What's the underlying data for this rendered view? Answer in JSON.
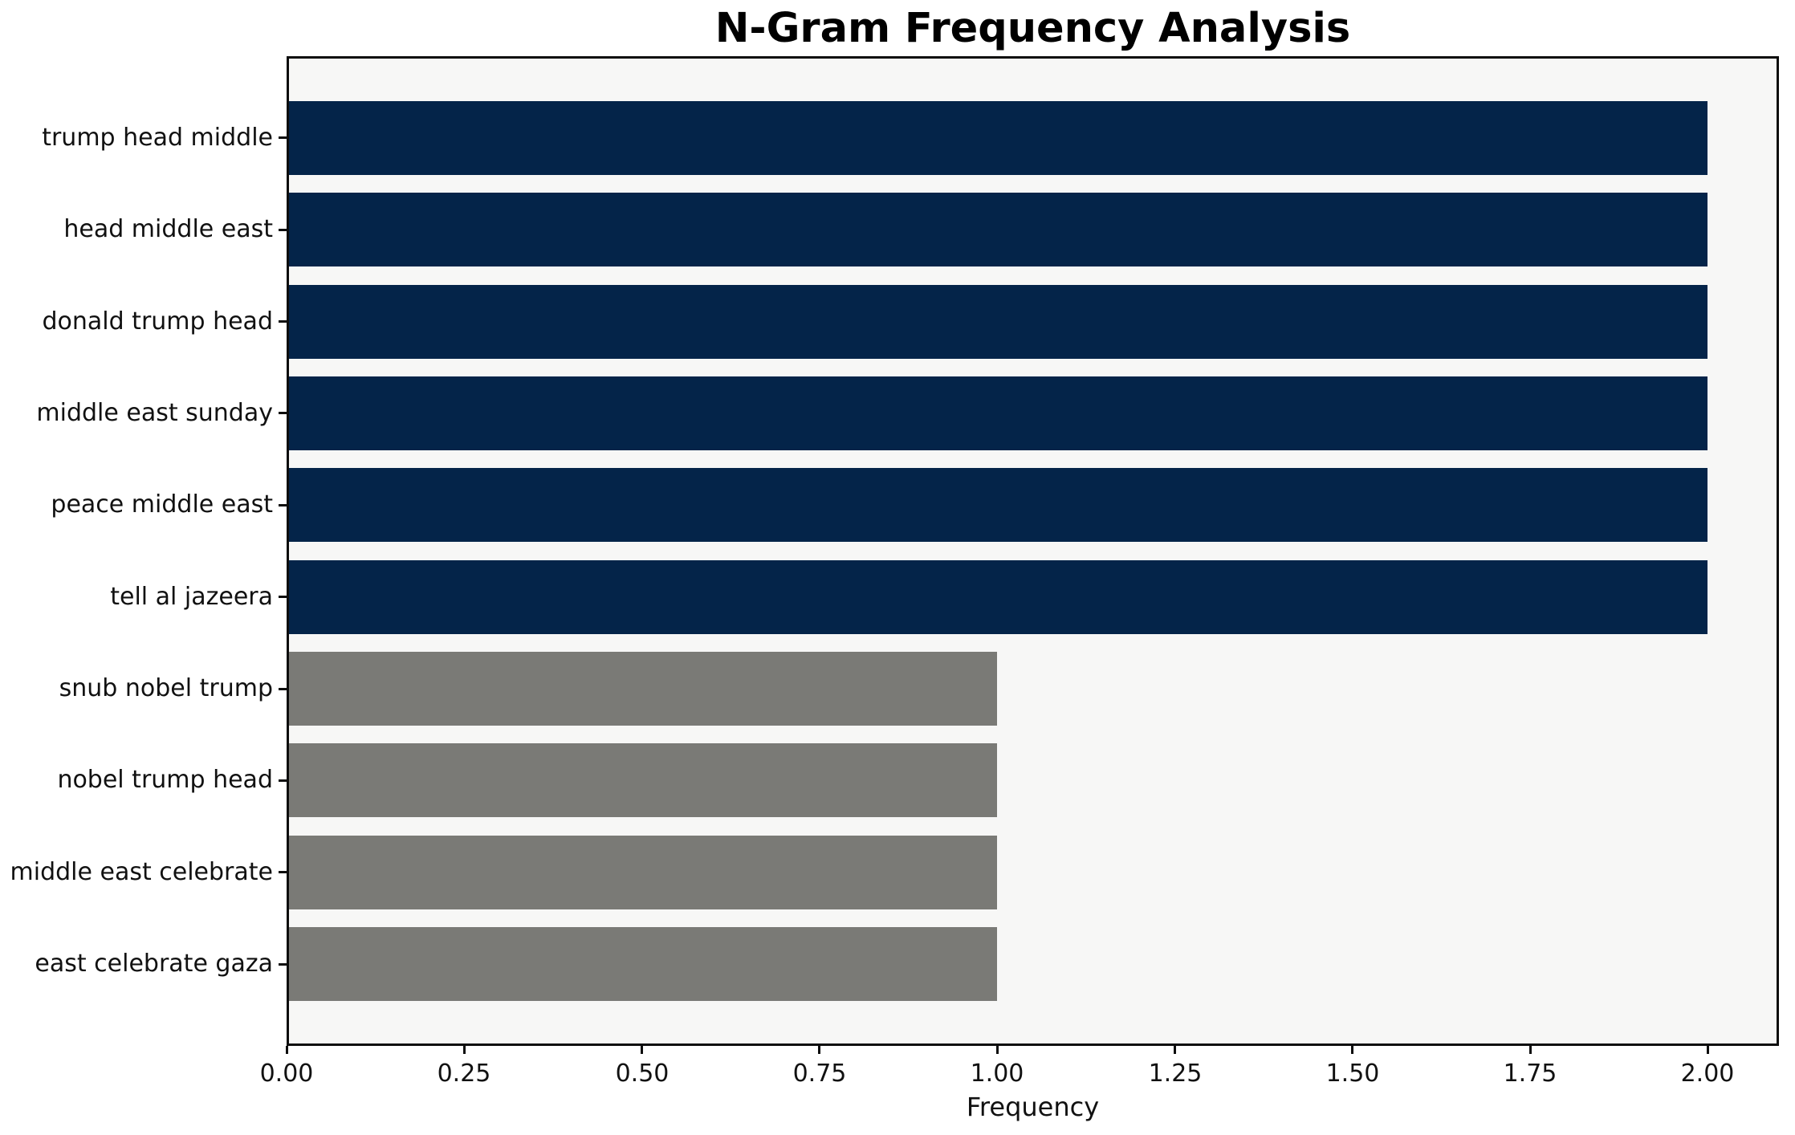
{
  "chart_data": {
    "type": "bar",
    "orientation": "horizontal",
    "title": "N-Gram Frequency Analysis",
    "xlabel": "Frequency",
    "ylabel": "",
    "categories": [
      "trump head middle",
      "head middle east",
      "donald trump head",
      "middle east sunday",
      "peace middle east",
      "tell al jazeera",
      "snub nobel trump",
      "nobel trump head",
      "middle east celebrate",
      "east celebrate gaza"
    ],
    "values": [
      2,
      2,
      2,
      2,
      2,
      2,
      1,
      1,
      1,
      1
    ],
    "bar_colors": [
      "#042449",
      "#042449",
      "#042449",
      "#042449",
      "#042449",
      "#042449",
      "#7a7a76",
      "#7a7a76",
      "#7a7a76",
      "#7a7a76"
    ],
    "xlim": [
      0,
      2.1
    ],
    "xticks": [
      0,
      0.25,
      0.5,
      0.75,
      1.0,
      1.25,
      1.5,
      1.75,
      2.0
    ],
    "xtick_labels": [
      "0.00",
      "0.25",
      "0.50",
      "0.75",
      "1.00",
      "1.25",
      "1.50",
      "1.75",
      "2.00"
    ],
    "grid": false,
    "legend": null
  },
  "style": {
    "navy": "#042449",
    "gray": "#7a7a76",
    "plot_background": "#f7f7f6",
    "figure_background": "#ffffff",
    "spine_color": "#0d0d0d",
    "text_color": "#111111"
  }
}
